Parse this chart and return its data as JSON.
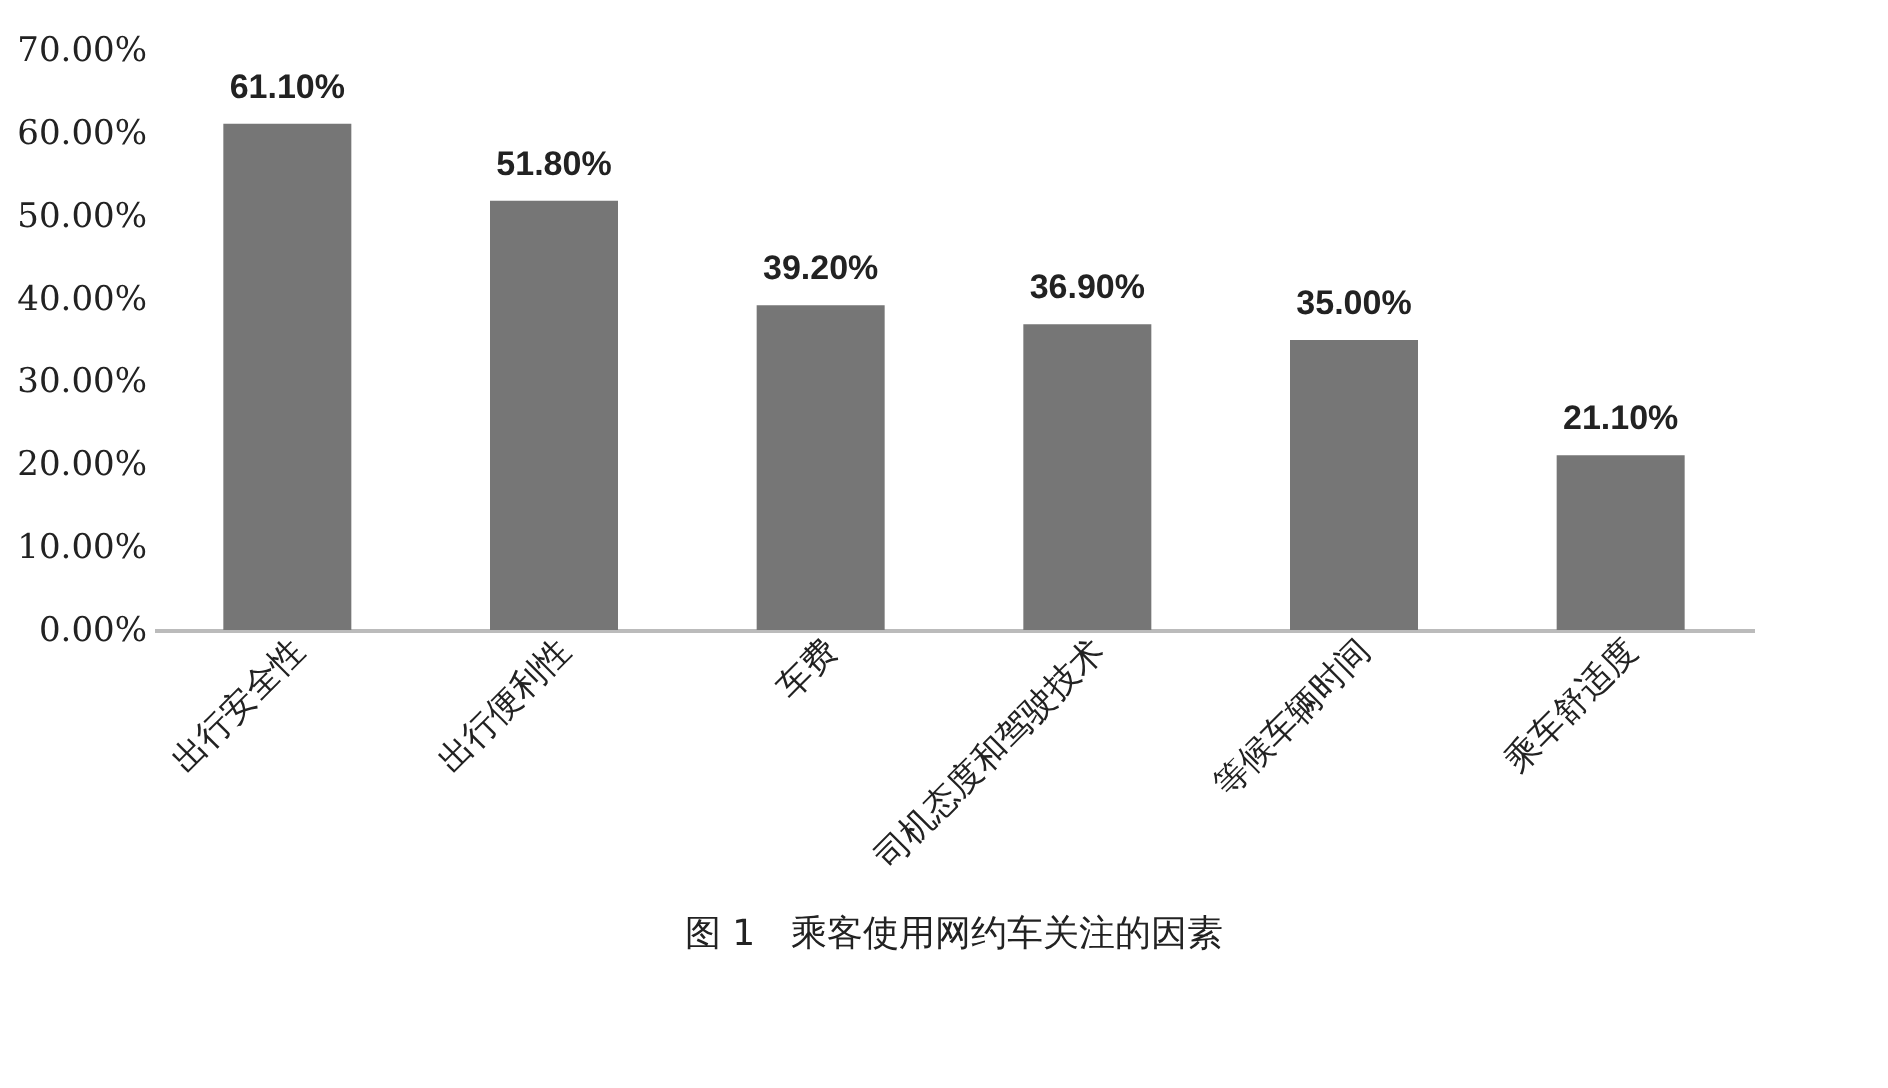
{
  "chart_data": {
    "type": "bar",
    "title": "图 1　乘客使用网约车关注的因素",
    "categories": [
      "出行安全性",
      "出行便利性",
      "车费",
      "司机态度和驾驶技术",
      "等候车辆时间",
      "乘车舒适度"
    ],
    "values": [
      61.1,
      51.8,
      39.2,
      36.9,
      35.0,
      21.1
    ],
    "value_labels": [
      "61.10%",
      "51.80%",
      "39.20%",
      "36.90%",
      "35.00%",
      "21.10%"
    ],
    "color": "#767676",
    "ylim": [
      0,
      70
    ],
    "yticks": [
      {
        "value": 0,
        "label": "0.00%"
      },
      {
        "value": 10,
        "label": "10.00%"
      },
      {
        "value": 20,
        "label": "20.00%"
      },
      {
        "value": 30,
        "label": "30.00%"
      },
      {
        "value": 40,
        "label": "40.00%"
      },
      {
        "value": 50,
        "label": "50.00%"
      },
      {
        "value": 60,
        "label": "60.00%"
      },
      {
        "value": 70,
        "label": "70.00%"
      }
    ],
    "grid": false
  }
}
